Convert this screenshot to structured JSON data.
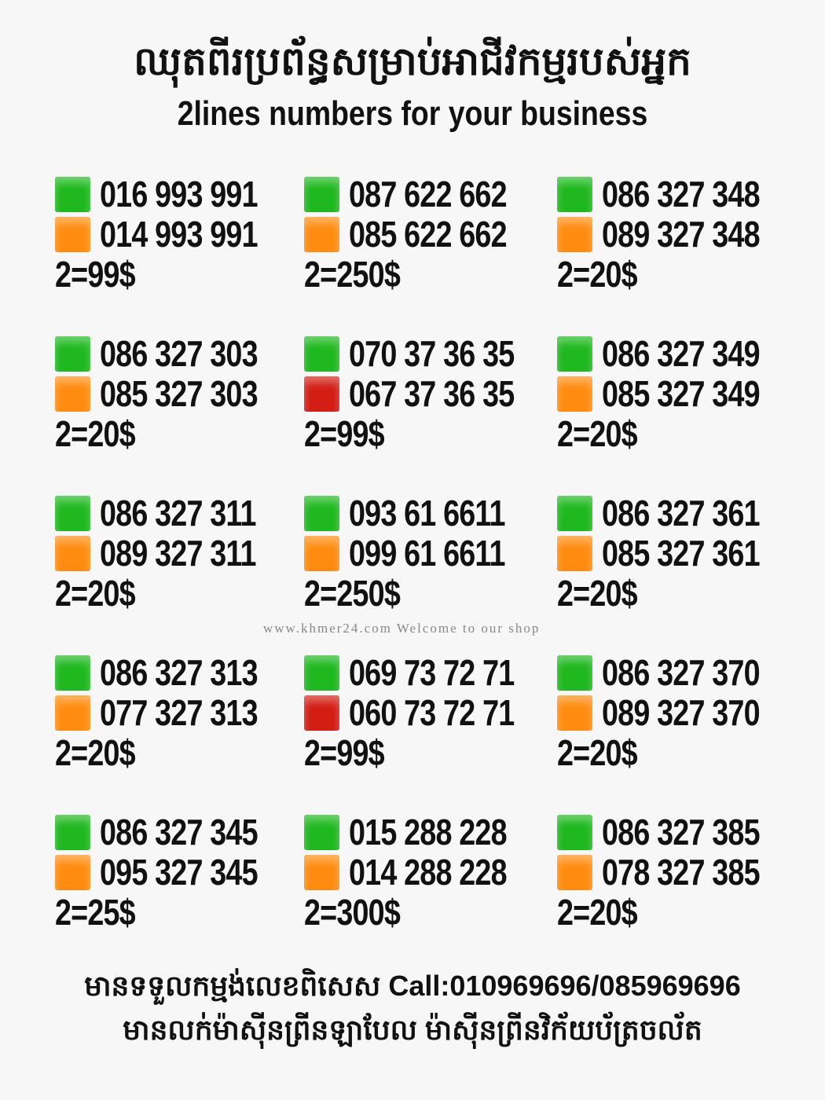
{
  "header": {
    "title_khmer": "ឈុតពីរប្រព័ន្ធសម្រាប់អាជីវកម្មរបស់អ្នក",
    "title_english": "2lines numbers for your business"
  },
  "colors": {
    "green": "#1fb81f",
    "orange": "#ff8c10",
    "red": "#d21e14"
  },
  "offers": [
    {
      "lines": [
        {
          "number": "016 993 991",
          "color": "green"
        },
        {
          "number": "014 993 991",
          "color": "orange"
        }
      ],
      "price": "2=99$"
    },
    {
      "lines": [
        {
          "number": "087 622 662",
          "color": "green"
        },
        {
          "number": "085 622 662",
          "color": "orange"
        }
      ],
      "price": "2=250$"
    },
    {
      "lines": [
        {
          "number": "086 327 348",
          "color": "green"
        },
        {
          "number": "089 327 348",
          "color": "orange"
        }
      ],
      "price": "2=20$"
    },
    {
      "lines": [
        {
          "number": "086 327 303",
          "color": "green"
        },
        {
          "number": "085 327 303",
          "color": "orange"
        }
      ],
      "price": "2=20$"
    },
    {
      "lines": [
        {
          "number": "070 37 36 35",
          "color": "green"
        },
        {
          "number": "067 37 36 35",
          "color": "red"
        }
      ],
      "price": "2=99$"
    },
    {
      "lines": [
        {
          "number": "086 327 349",
          "color": "green"
        },
        {
          "number": "085 327 349",
          "color": "orange"
        }
      ],
      "price": "2=20$"
    },
    {
      "lines": [
        {
          "number": "086 327 311",
          "color": "green"
        },
        {
          "number": "089 327 311",
          "color": "orange"
        }
      ],
      "price": "2=20$"
    },
    {
      "lines": [
        {
          "number": "093 61 6611",
          "color": "green"
        },
        {
          "number": "099 61 6611",
          "color": "orange"
        }
      ],
      "price": "2=250$"
    },
    {
      "lines": [
        {
          "number": "086 327 361",
          "color": "green"
        },
        {
          "number": "085 327 361",
          "color": "orange"
        }
      ],
      "price": "2=20$"
    },
    {
      "lines": [
        {
          "number": "086 327 313",
          "color": "green"
        },
        {
          "number": "077 327 313",
          "color": "orange"
        }
      ],
      "price": "2=20$"
    },
    {
      "lines": [
        {
          "number": "069 73 72 71",
          "color": "green"
        },
        {
          "number": "060 73 72 71",
          "color": "red"
        }
      ],
      "price": "2=99$"
    },
    {
      "lines": [
        {
          "number": "086 327 370",
          "color": "green"
        },
        {
          "number": "089 327 370",
          "color": "orange"
        }
      ],
      "price": "2=20$"
    },
    {
      "lines": [
        {
          "number": "086 327 345",
          "color": "green"
        },
        {
          "number": "095 327 345",
          "color": "orange"
        }
      ],
      "price": "2=25$"
    },
    {
      "lines": [
        {
          "number": "015 288 228",
          "color": "green"
        },
        {
          "number": "014 288 228",
          "color": "orange"
        }
      ],
      "price": "2=300$"
    },
    {
      "lines": [
        {
          "number": "086 327 385",
          "color": "green"
        },
        {
          "number": "078 327 385",
          "color": "orange"
        }
      ],
      "price": "2=20$"
    }
  ],
  "footer": {
    "line1": "មានទទួលកម្មង់លេខពិសេស Call:010969696/085969696",
    "line2": "មានលក់ម៉ាស៊ីនព្រីនឡាបែល ម៉ាស៊ីនព្រីនវិក័យប័ត្រចល័ត"
  },
  "watermark": "www.khmer24.com Welcome to our shop"
}
